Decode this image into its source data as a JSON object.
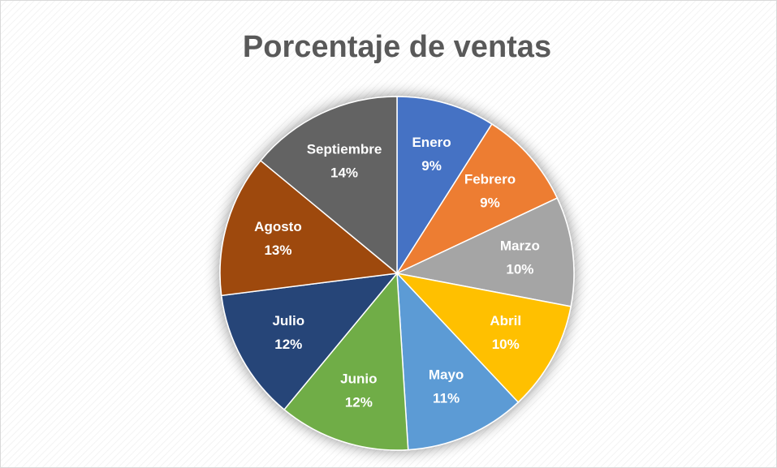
{
  "chart_data": {
    "type": "pie",
    "title": "Porcentaje de ventas",
    "categories": [
      "Enero",
      "Febrero",
      "Marzo",
      "Abril",
      "Mayo",
      "Junio",
      "Julio",
      "Agosto",
      "Septiembre"
    ],
    "values": [
      9,
      9,
      10,
      10,
      11,
      12,
      12,
      13,
      14
    ],
    "value_labels": [
      "9%",
      "9%",
      "10%",
      "10%",
      "11%",
      "12%",
      "12%",
      "13%",
      "14%"
    ],
    "colors": [
      "#4472c4",
      "#ed7d31",
      "#a5a5a5",
      "#ffc000",
      "#5b9bd5",
      "#70ad47",
      "#264478",
      "#9e480e",
      "#636363"
    ]
  }
}
